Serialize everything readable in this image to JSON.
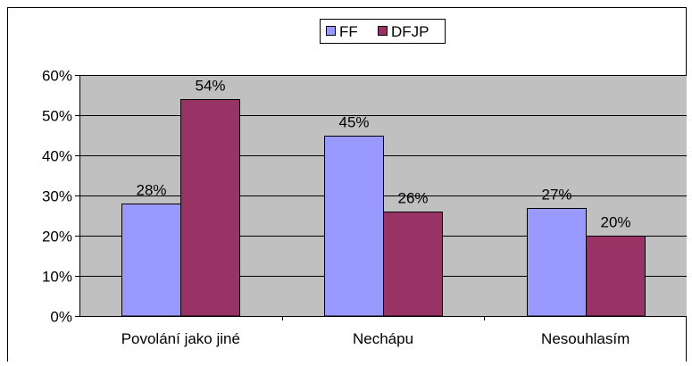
{
  "chart_data": {
    "type": "bar",
    "categories": [
      "Povolání jako jiné",
      "Nechápu",
      "Nesouhlasím"
    ],
    "series": [
      {
        "name": "FF",
        "values": [
          28,
          45,
          27
        ],
        "labels": [
          "28%",
          "45%",
          "27%"
        ],
        "color": "#9999ff"
      },
      {
        "name": "DFJP",
        "values": [
          54,
          26,
          20
        ],
        "labels": [
          "54%",
          "26%",
          "20%"
        ],
        "color": "#993366"
      }
    ],
    "ylim": [
      0,
      60
    ],
    "yticks": [
      0,
      10,
      20,
      30,
      40,
      50,
      60
    ],
    "ytick_labels": [
      "0%",
      "10%",
      "20%",
      "30%",
      "40%",
      "50%",
      "60%"
    ],
    "grid": true,
    "plot_background": "#c0c0c0",
    "legend_position": "top-center",
    "title": "",
    "xlabel": "",
    "ylabel": ""
  }
}
